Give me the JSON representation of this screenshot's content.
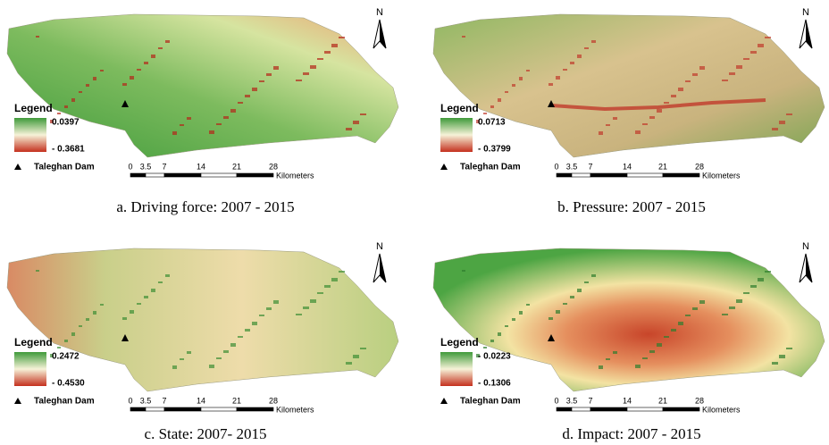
{
  "panels": [
    {
      "caption": "a. Driving force: 2007 - 2015",
      "north": "N",
      "legend": {
        "title": "Legend",
        "max": "0.0397",
        "min": "- 0.3681",
        "dam": "Taleghan Dam"
      },
      "scale": {
        "ticks": [
          "0",
          "3.5",
          "7",
          "14",
          "21",
          "28"
        ],
        "unit": "Kilometers"
      }
    },
    {
      "caption": "b. Pressure: 2007 - 2015",
      "north": "N",
      "legend": {
        "title": "Legend",
        "max": "0.0713",
        "min": "- 0.3799",
        "dam": "Taleghan Dam"
      },
      "scale": {
        "ticks": [
          "0",
          "3.5",
          "7",
          "14",
          "21",
          "28"
        ],
        "unit": "Kilometers"
      }
    },
    {
      "caption": "c. State: 2007- 2015",
      "north": "N",
      "legend": {
        "title": "Legend",
        "max": "0.2472",
        "min": "- 0.4530",
        "dam": "Taleghan Dam"
      },
      "scale": {
        "ticks": [
          "0",
          "3.5",
          "7",
          "14",
          "21",
          "28"
        ],
        "unit": "Kilometers"
      }
    },
    {
      "caption": "d. Impact: 2007 - 2015",
      "north": "N",
      "legend": {
        "title": "Legend",
        "max": "- 0.0223",
        "min": "- 0.1306",
        "dam": "Taleghan Dam"
      },
      "scale": {
        "ticks": [
          "0",
          "3.5",
          "7",
          "14",
          "21",
          "28"
        ],
        "unit": "Kilometers"
      }
    }
  ]
}
